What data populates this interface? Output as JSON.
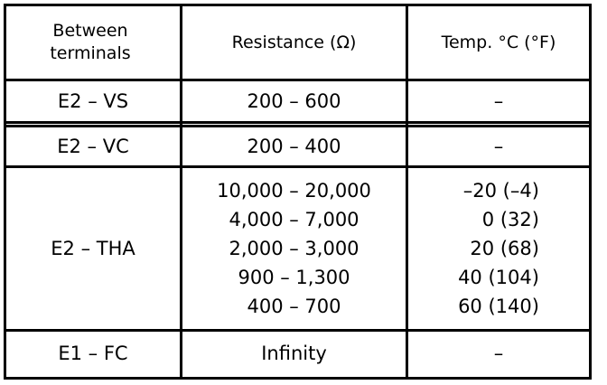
{
  "table": {
    "header": [
      "Between terminals",
      "Resistance (Ω)",
      "Temp. °C (°F)"
    ],
    "rows": [
      [
        "E2 – VS",
        [
          "200 – 600"
        ],
        [
          "–"
        ]
      ],
      [
        "E2 – VC",
        [
          "200 – 400"
        ],
        [
          "–"
        ]
      ],
      [
        "E2 – THA",
        [
          "10,000 – 20,000",
          "4,000 – 7,000",
          "2,000 – 3,000",
          "900 – 1,300",
          "400 – 700"
        ],
        [
          "–20 (–4)",
          "0 (32)",
          "20 (68)",
          "40 (104)",
          "60 (140)"
        ]
      ],
      [
        "E1 – FC",
        [
          "Infinity"
        ],
        [
          "–"
        ]
      ]
    ]
  }
}
